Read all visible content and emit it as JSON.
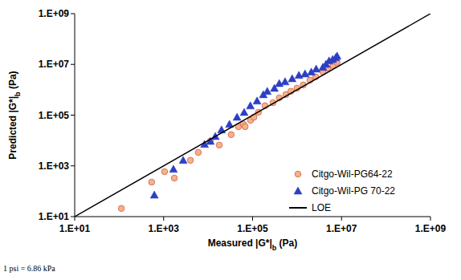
{
  "chart_data": {
    "type": "scatter",
    "x_label": "Measured |G*|b (Pa)",
    "y_label": "Predicted |G*|b (Pa)",
    "annotation": "1 psi = 6.86 kPa",
    "log": true,
    "grid": false,
    "legend": "lower right",
    "xlim": [
      10,
      1000000000
    ],
    "ylim": [
      10,
      1000000000
    ],
    "xticks": [
      {
        "value": 10,
        "label": "1.E+01"
      },
      {
        "value": 1000,
        "label": "1.E+03"
      },
      {
        "value": 100000,
        "label": "1.E+05"
      },
      {
        "value": 10000000,
        "label": "1.E+07"
      },
      {
        "value": 1000000000,
        "label": "1.E+09"
      }
    ],
    "yticks": [
      {
        "value": 10,
        "label": "1.E+01"
      },
      {
        "value": 1000,
        "label": "1.E+03"
      },
      {
        "value": 100000,
        "label": "1.E+05"
      },
      {
        "value": 10000000,
        "label": "1.E+07"
      },
      {
        "value": 1000000000,
        "label": "1.E+09"
      }
    ],
    "series": [
      {
        "name": "Citgo-Wil-PG64-22",
        "type": "scatter",
        "marker": "circle",
        "color": "#f7b08c",
        "x": [
          112,
          537,
          1050,
          1740,
          4000,
          6000,
          11200,
          17800,
          33000,
          48000,
          62000,
          68000,
          90000,
          107000,
          135000,
          190000,
          288000,
          398000,
          562000,
          724000,
          1000000,
          1380000,
          1950000,
          2630000,
          3800000,
          4900000,
          6460000,
          7940000
        ],
        "values": [
          21,
          229,
          590,
          330,
          1660,
          3400,
          9300,
          6600,
          17000,
          35000,
          44000,
          35000,
          63000,
          83000,
          129000,
          234000,
          309000,
          479000,
          646000,
          871000,
          1150000,
          1550000,
          2400000,
          3240000,
          5010000,
          7080000,
          8910000,
          12000000
        ]
      },
      {
        "name": "Citgo-Wil-PG 70-22",
        "type": "scatter",
        "marker": "triangle",
        "color": "#2c3fc4",
        "x": [
          617,
          1660,
          2750,
          8320,
          11200,
          14500,
          20000,
          30200,
          44700,
          64600,
          89100,
          126000,
          174000,
          214000,
          309000,
          398000,
          537000,
          776000,
          1100000,
          1510000,
          2090000,
          2690000,
          3800000,
          4470000,
          5250000,
          6310000,
          7410000,
          7940000
        ],
        "values": [
          71,
          741,
          1660,
          7080,
          9330,
          14500,
          26300,
          43700,
          83200,
          129000,
          234000,
          363000,
          646000,
          871000,
          1150000,
          1780000,
          2090000,
          2750000,
          3720000,
          4270000,
          5010000,
          6610000,
          7760000,
          10200000,
          13800000,
          15800000,
          18600000,
          21400000
        ]
      },
      {
        "name": "LOE",
        "type": "line",
        "line_style": "solid",
        "color": "#000000",
        "x": [
          10,
          1000000000
        ],
        "values": [
          10,
          1000000000
        ]
      }
    ]
  }
}
